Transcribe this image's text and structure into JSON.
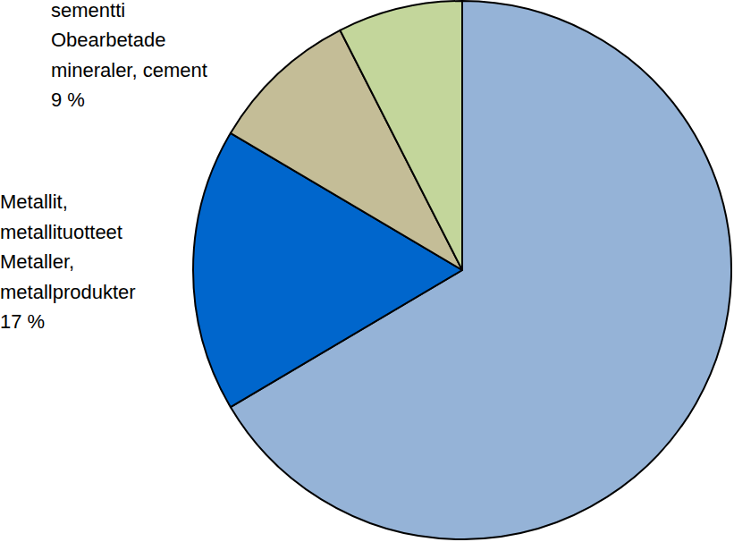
{
  "chart_data": {
    "type": "pie",
    "categories": [
      null,
      "Metallit,\nmetallituotteet\nMetaller,\nmetallprodukter",
      "sementti\nObearbetade\nmineraler, cement",
      null
    ],
    "values": [
      66.5,
      17,
      9,
      7.5
    ],
    "value_labels": [
      null,
      "17 %",
      "9 %",
      null
    ],
    "colors": [
      "#95b3d7",
      "#0066cc",
      "#c4bd97",
      "#c3d69b"
    ],
    "data_labels": true
  }
}
